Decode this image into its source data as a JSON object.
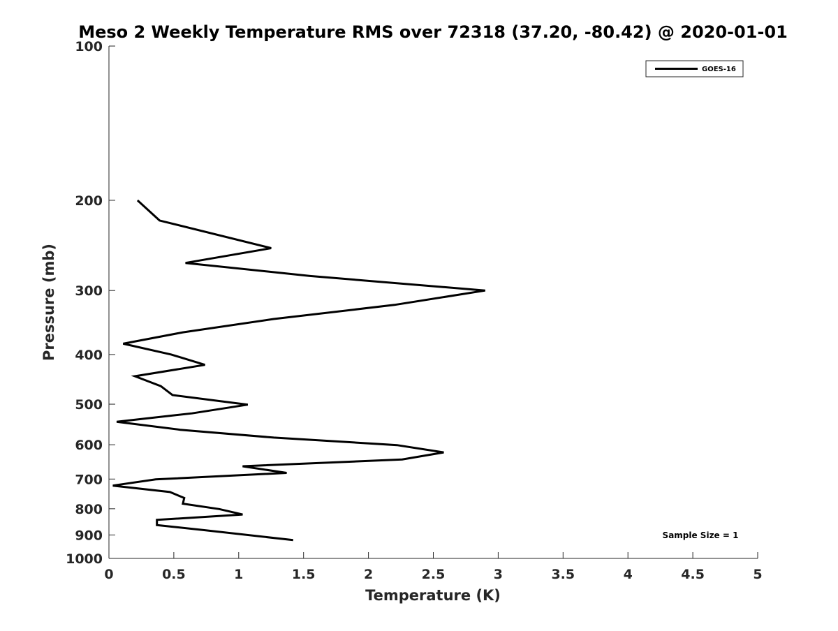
{
  "chart_data": {
    "type": "line",
    "title": "Meso 2 Weekly Temperature RMS over 72318 (37.20, -80.42) @ 2020-01-01",
    "xlabel": "Temperature (K)",
    "ylabel": "Pressure (mb)",
    "xlim": [
      0,
      5
    ],
    "ylim": [
      100,
      1000
    ],
    "y_scale": "log",
    "y_reversed": true,
    "x_ticks": [
      0,
      0.5,
      1,
      1.5,
      2,
      2.5,
      3,
      3.5,
      4,
      4.5,
      5
    ],
    "x_tick_labels": [
      "0",
      "0.5",
      "1",
      "1.5",
      "2",
      "2.5",
      "3",
      "3.5",
      "4",
      "4.5",
      "5"
    ],
    "y_ticks": [
      100,
      200,
      300,
      400,
      500,
      600,
      700,
      800,
      900,
      1000
    ],
    "y_tick_labels": [
      "100",
      "200",
      "300",
      "400",
      "500",
      "600",
      "700",
      "800",
      "900",
      "1000"
    ],
    "grid": false,
    "legend_position": "top-right",
    "annotation": "Sample Size = 1",
    "series": [
      {
        "name": "GOES-16",
        "color": "#000000",
        "points": [
          {
            "x": 0.22,
            "y": 200
          },
          {
            "x": 0.39,
            "y": 219
          },
          {
            "x": 1.25,
            "y": 248
          },
          {
            "x": 0.59,
            "y": 265
          },
          {
            "x": 1.55,
            "y": 281
          },
          {
            "x": 2.9,
            "y": 300
          },
          {
            "x": 2.2,
            "y": 320
          },
          {
            "x": 1.27,
            "y": 341
          },
          {
            "x": 0.57,
            "y": 362
          },
          {
            "x": 0.11,
            "y": 381
          },
          {
            "x": 0.48,
            "y": 400
          },
          {
            "x": 0.74,
            "y": 419
          },
          {
            "x": 0.2,
            "y": 441
          },
          {
            "x": 0.4,
            "y": 461
          },
          {
            "x": 0.49,
            "y": 480
          },
          {
            "x": 1.07,
            "y": 501
          },
          {
            "x": 0.64,
            "y": 521
          },
          {
            "x": 0.06,
            "y": 541
          },
          {
            "x": 0.55,
            "y": 561
          },
          {
            "x": 1.27,
            "y": 581
          },
          {
            "x": 2.22,
            "y": 601
          },
          {
            "x": 2.58,
            "y": 621
          },
          {
            "x": 2.26,
            "y": 641
          },
          {
            "x": 1.03,
            "y": 661
          },
          {
            "x": 1.37,
            "y": 681
          },
          {
            "x": 0.36,
            "y": 701
          },
          {
            "x": 0.03,
            "y": 721
          },
          {
            "x": 0.47,
            "y": 742
          },
          {
            "x": 0.58,
            "y": 762
          },
          {
            "x": 0.57,
            "y": 782
          },
          {
            "x": 0.85,
            "y": 801
          },
          {
            "x": 1.03,
            "y": 821
          },
          {
            "x": 0.37,
            "y": 841
          },
          {
            "x": 0.37,
            "y": 861
          },
          {
            "x": 0.74,
            "y": 881
          },
          {
            "x": 1.42,
            "y": 921
          }
        ]
      }
    ]
  }
}
